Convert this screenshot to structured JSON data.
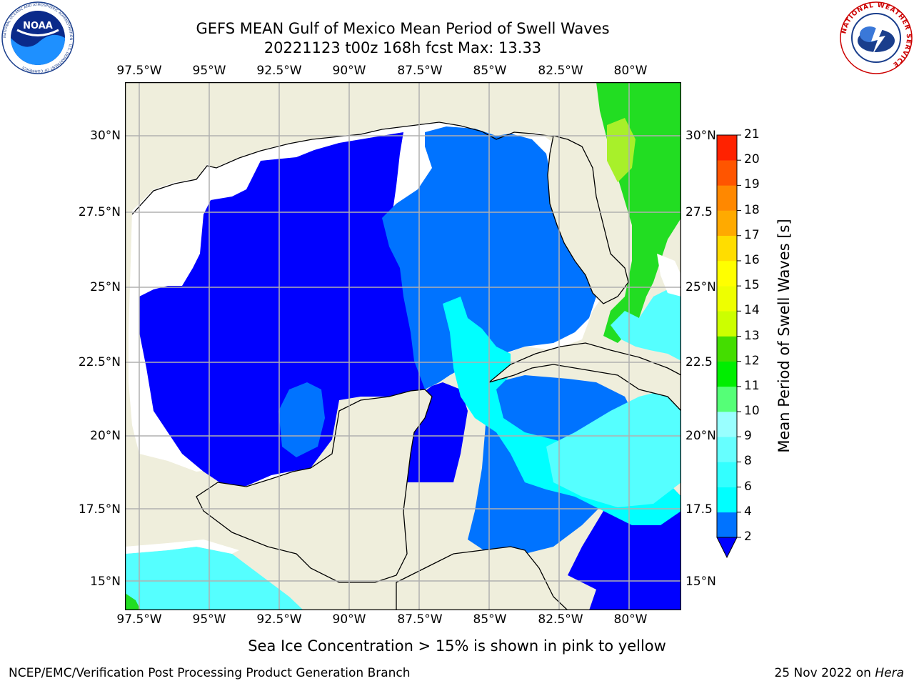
{
  "header": {
    "title": "GEFS MEAN Gulf of Mexico Mean Period of Swell Waves",
    "subtitle": "20221123 t00z 168h fcst   Max: 13.33",
    "noaa_logo_text": "NOAA",
    "noaa_ring_text": "NATIONAL OCEANIC AND ATMOSPHERIC ADMINISTRATION · U.S. DEPARTMENT OF COMMERCE",
    "nws_ring_text": "NATIONAL WEATHER SERVICE"
  },
  "map": {
    "lon_ticks": [
      "97.5°W",
      "95°W",
      "92.5°W",
      "90°W",
      "87.5°W",
      "85°W",
      "82.5°W",
      "80°W"
    ],
    "lat_ticks_left": [
      "30°N",
      "27.5°N",
      "25°N",
      "22.5°N",
      "20°N",
      "17.5°N",
      "15°N"
    ],
    "lat_ticks_right": [
      "30°N",
      "27.5",
      "25°N",
      "22.5",
      "20°N",
      "17.5",
      "15°N"
    ]
  },
  "colorbar": {
    "label": "Mean Period of Swell Waves [s]",
    "ticks": [
      "2",
      "4",
      "6",
      "8",
      "9",
      "10",
      "11",
      "12",
      "13",
      "14",
      "15",
      "16",
      "17",
      "18",
      "19",
      "20",
      "21"
    ],
    "colors": [
      "#0073ff",
      "#00ffff",
      "#33ffff",
      "#66ffff",
      "#99ffff",
      "#55ff77",
      "#00ee00",
      "#44dd00",
      "#ccff00",
      "#eeff00",
      "#ffff00",
      "#ffdd00",
      "#ffaa00",
      "#ff8800",
      "#ff5500",
      "#ff2200"
    ],
    "extend_color": "#0000ff"
  },
  "colors": {
    "land": "#efeedc",
    "deep_blue": "#0000ff",
    "mid_blue": "#0073ff",
    "cyan": "#00ffff",
    "light_cyan": "#55ffff",
    "green": "#22dd22"
  },
  "footer": {
    "note": "Sea Ice Concentration > 15% is shown in pink to yellow",
    "left": "NCEP/EMC/Verification Post Processing Product Generation Branch",
    "date": "25 Nov 2022 on ",
    "machine": "Hera"
  }
}
